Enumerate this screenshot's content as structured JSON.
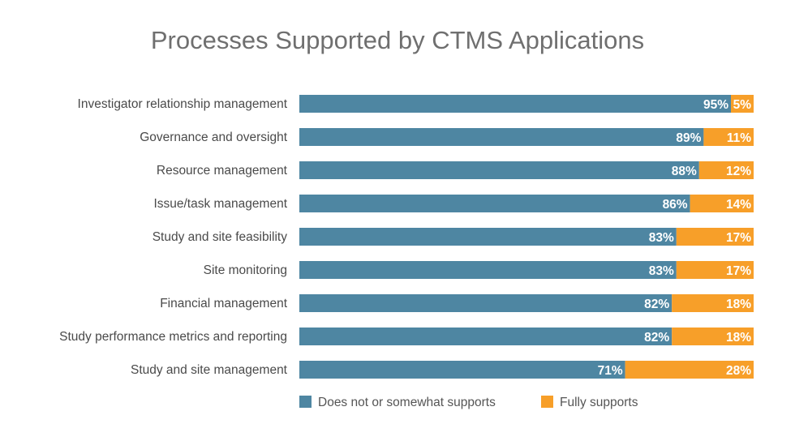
{
  "chart_data": {
    "type": "bar",
    "orientation": "horizontal",
    "stacked": true,
    "title": "Processes Supported by CTMS Applications",
    "categories": [
      "Investigator relationship management",
      "Governance and oversight",
      "Resource management",
      "Issue/task management",
      "Study and site feasibility",
      "Site monitoring",
      "Financial management",
      "Study performance metrics and reporting",
      "Study and site management"
    ],
    "series": [
      {
        "name": "Does not or somewhat supports",
        "color": "#4e86a2",
        "values": [
          95,
          89,
          88,
          86,
          83,
          83,
          82,
          82,
          71
        ]
      },
      {
        "name": "Fully supports",
        "color": "#f79f29",
        "values": [
          5,
          11,
          12,
          14,
          17,
          17,
          18,
          18,
          28
        ]
      }
    ],
    "value_suffix": "%",
    "xlabel": "",
    "ylabel": "",
    "grid": false,
    "legend_position": "bottom"
  }
}
